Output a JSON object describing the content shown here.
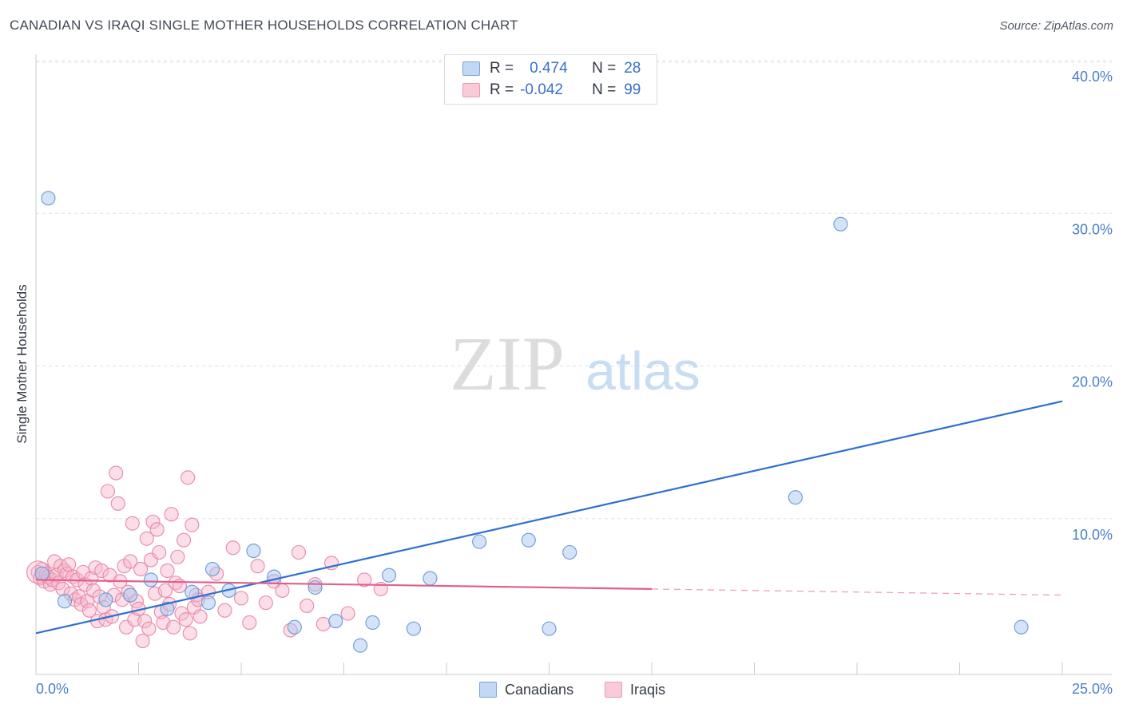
{
  "title": "CANADIAN VS IRAQI SINGLE MOTHER HOUSEHOLDS CORRELATION CHART",
  "source": "Source: ZipAtlas.com",
  "watermark": {
    "zip": "ZIP",
    "atlas": "atlas"
  },
  "legend_top": {
    "r_label": "R =",
    "n_label": "N =",
    "rows": [
      {
        "name": "Canadians",
        "r": "0.474",
        "n": "28"
      },
      {
        "name": "Iraqis",
        "r": "-0.042",
        "n": "99"
      }
    ]
  },
  "chart_data": {
    "type": "scatter",
    "title": "CANADIAN VS IRAQI SINGLE MOTHER HOUSEHOLDS CORRELATION CHART",
    "xlabel": "",
    "ylabel": "Single Mother Households",
    "xlim": [
      0,
      25
    ],
    "ylim": [
      0,
      40
    ],
    "x_tick_labels": [
      "0.0%",
      "25.0%"
    ],
    "y_ticks": [
      10,
      20,
      30,
      40
    ],
    "y_tick_labels": [
      "10.0%",
      "20.0%",
      "30.0%",
      "40.0%"
    ],
    "grid": true,
    "legend_position": "top-center",
    "colors": {
      "canadians_fill": "#a9c8f0",
      "canadians_stroke": "#6a9ad8",
      "canadians_line": "#2f6fd0",
      "iraqis_fill": "#f7b6c9",
      "iraqis_stroke": "#e889a8",
      "iraqis_line": "#e0608c",
      "tick_label": "#4a7fc8",
      "grid": "#dde0e5"
    },
    "series": [
      {
        "name": "Canadians",
        "x": [
          0.15,
          0.7,
          1.7,
          2.3,
          3.2,
          3.8,
          4.3,
          4.7,
          5.3,
          5.8,
          6.3,
          6.8,
          7.3,
          7.9,
          8.2,
          8.6,
          9.2,
          9.6,
          10.8,
          12.0,
          12.5,
          13.0,
          18.5,
          19.6,
          24.0,
          0.3,
          2.8,
          4.2
        ],
        "y": [
          6.6,
          4.8,
          4.9,
          5.2,
          4.3,
          5.4,
          6.9,
          5.5,
          8.1,
          6.4,
          3.1,
          5.7,
          3.5,
          1.9,
          3.4,
          6.5,
          3.0,
          6.3,
          8.7,
          8.8,
          3.0,
          8.0,
          11.6,
          29.5,
          3.1,
          31.2,
          6.2,
          4.7
        ]
      },
      {
        "name": "Iraqis",
        "x": [
          0.05,
          0.1,
          0.15,
          0.2,
          0.25,
          0.3,
          0.35,
          0.4,
          0.45,
          0.5,
          0.55,
          0.6,
          0.65,
          0.7,
          0.75,
          0.8,
          0.85,
          0.9,
          0.95,
          1.0,
          1.05,
          1.1,
          1.15,
          1.2,
          1.25,
          1.3,
          1.35,
          1.4,
          1.45,
          1.5,
          1.55,
          1.6,
          1.65,
          1.7,
          1.75,
          1.8,
          1.85,
          1.9,
          1.95,
          2.0,
          2.05,
          2.1,
          2.15,
          2.2,
          2.25,
          2.3,
          2.35,
          2.4,
          2.45,
          2.5,
          2.55,
          2.6,
          2.65,
          2.7,
          2.75,
          2.8,
          2.85,
          2.9,
          2.95,
          3.0,
          3.05,
          3.1,
          3.15,
          3.2,
          3.25,
          3.3,
          3.35,
          3.4,
          3.45,
          3.5,
          3.55,
          3.6,
          3.65,
          3.7,
          3.75,
          3.8,
          3.85,
          3.9,
          3.95,
          4.0,
          4.2,
          4.4,
          4.6,
          4.8,
          5.0,
          5.2,
          5.4,
          5.6,
          5.8,
          6.0,
          6.2,
          6.4,
          6.6,
          6.8,
          7.0,
          7.2,
          7.6,
          8.0,
          8.4
        ],
        "y": [
          6.7,
          6.3,
          6.9,
          6.1,
          6.6,
          6.4,
          5.9,
          6.2,
          7.4,
          6.5,
          6.0,
          7.1,
          5.6,
          6.8,
          6.6,
          7.2,
          5.3,
          6.4,
          4.9,
          6.2,
          5.1,
          4.6,
          6.7,
          5.9,
          4.8,
          4.2,
          6.3,
          5.5,
          7.0,
          3.5,
          5.1,
          6.8,
          4.4,
          3.6,
          12.0,
          6.5,
          3.8,
          5.2,
          13.2,
          11.2,
          6.1,
          4.9,
          7.1,
          3.1,
          5.4,
          7.4,
          9.9,
          3.6,
          4.8,
          4.3,
          6.9,
          2.2,
          3.5,
          8.9,
          3.0,
          7.5,
          10.0,
          5.3,
          9.5,
          8.0,
          4.1,
          3.4,
          5.5,
          6.8,
          4.6,
          10.5,
          3.1,
          6.0,
          7.7,
          5.8,
          4.0,
          8.8,
          3.6,
          12.9,
          2.7,
          9.8,
          4.4,
          5.2,
          4.9,
          3.8,
          5.4,
          6.6,
          4.2,
          8.3,
          5.0,
          3.4,
          7.1,
          4.7,
          6.1,
          5.5,
          2.9,
          8.0,
          4.5,
          5.9,
          3.3,
          7.3,
          4.0,
          6.2,
          5.6
        ]
      }
    ],
    "trend_lines": [
      {
        "series": "Canadians",
        "x": [
          0,
          25
        ],
        "y": [
          2.7,
          17.9
        ],
        "style": "solid"
      },
      {
        "series": "Iraqis",
        "x": [
          0,
          15
        ],
        "y": [
          6.2,
          5.6
        ],
        "style": "solid"
      },
      {
        "series": "Iraqis",
        "x": [
          15,
          25
        ],
        "y": [
          5.6,
          5.2
        ],
        "style": "dashed"
      }
    ]
  }
}
